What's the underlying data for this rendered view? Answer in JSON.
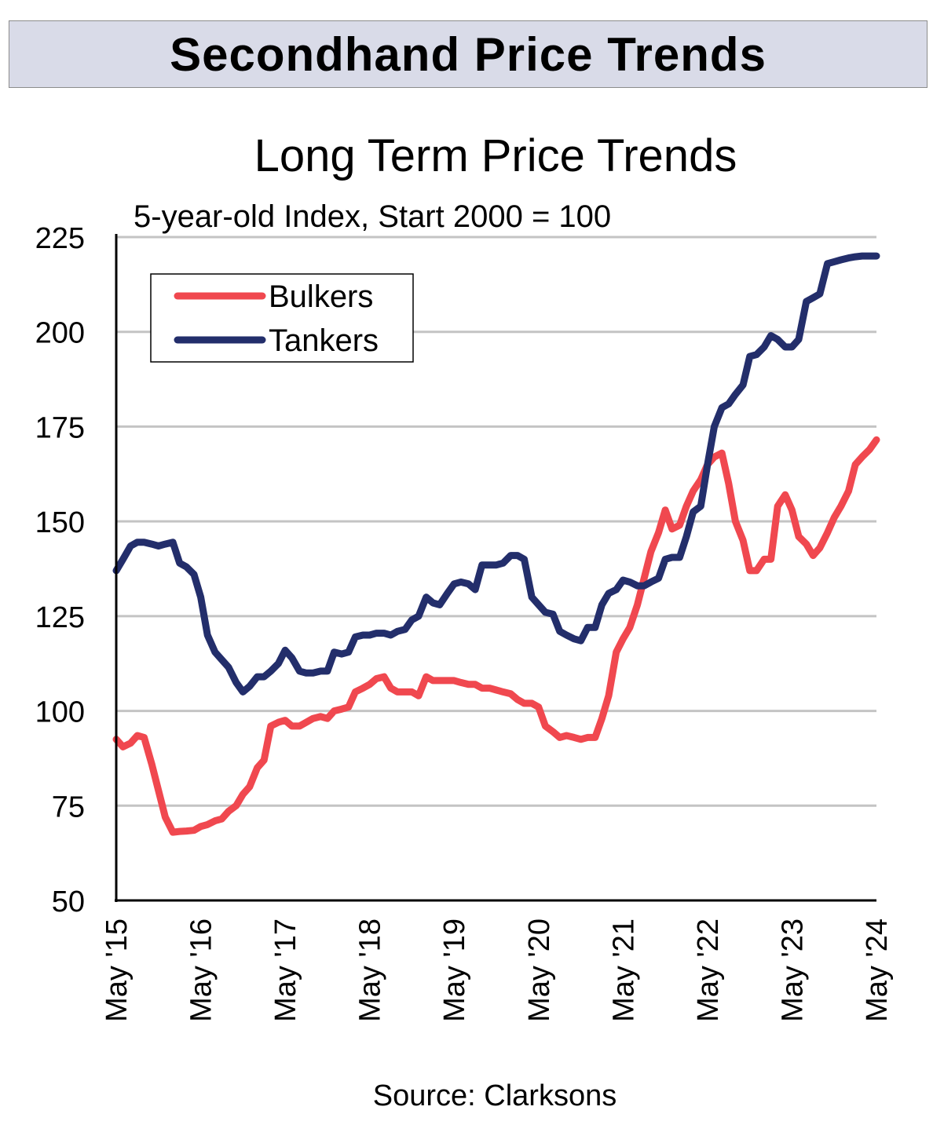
{
  "banner": {
    "title": "Secondhand Price Trends"
  },
  "chart_data": {
    "type": "line",
    "title": "Long Term Price Trends",
    "subtitle": "5-year-old Index, Start 2000 = 100",
    "xlabel": "",
    "ylabel": "",
    "source": "Source: Clarksons",
    "ylim": [
      50,
      225
    ],
    "yticks": [
      50,
      75,
      100,
      125,
      150,
      175,
      200,
      225
    ],
    "grid": "horizontal",
    "legend_position": "top-left",
    "x_start": 2015.0,
    "x_end": 2024.0,
    "xtick_labels": [
      "May '15",
      "May '16",
      "May '17",
      "May '18",
      "May '19",
      "May '20",
      "May '21",
      "May '22",
      "May '23",
      "May '24"
    ],
    "series": [
      {
        "name": "Bulkers",
        "color": "#f0484f",
        "points": [
          [
            2015.0,
            92.5
          ],
          [
            2015.08,
            90.5
          ],
          [
            2015.17,
            91.5
          ],
          [
            2015.25,
            93.5
          ],
          [
            2015.33,
            93.0
          ],
          [
            2015.42,
            86.0
          ],
          [
            2015.5,
            79.0
          ],
          [
            2015.58,
            72.0
          ],
          [
            2015.67,
            68.0
          ],
          [
            2015.75,
            68.2
          ],
          [
            2015.83,
            68.3
          ],
          [
            2015.92,
            68.5
          ],
          [
            2016.0,
            69.5
          ],
          [
            2016.08,
            70.0
          ],
          [
            2016.17,
            71.0
          ],
          [
            2016.25,
            71.5
          ],
          [
            2016.33,
            73.5
          ],
          [
            2016.42,
            75.0
          ],
          [
            2016.5,
            78.0
          ],
          [
            2016.58,
            80.0
          ],
          [
            2016.67,
            85.0
          ],
          [
            2016.75,
            87.0
          ],
          [
            2016.83,
            96.0
          ],
          [
            2016.92,
            97.0
          ],
          [
            2017.0,
            97.5
          ],
          [
            2017.08,
            96.0
          ],
          [
            2017.17,
            96.0
          ],
          [
            2017.25,
            97.0
          ],
          [
            2017.33,
            98.0
          ],
          [
            2017.42,
            98.5
          ],
          [
            2017.5,
            98.0
          ],
          [
            2017.58,
            100.0
          ],
          [
            2017.67,
            100.5
          ],
          [
            2017.75,
            101.0
          ],
          [
            2017.83,
            105.0
          ],
          [
            2017.92,
            106.0
          ],
          [
            2018.0,
            107.0
          ],
          [
            2018.08,
            108.5
          ],
          [
            2018.17,
            109.0
          ],
          [
            2018.25,
            106.0
          ],
          [
            2018.33,
            105.0
          ],
          [
            2018.42,
            105.0
          ],
          [
            2018.5,
            105.0
          ],
          [
            2018.58,
            104.0
          ],
          [
            2018.67,
            109.0
          ],
          [
            2018.75,
            108.0
          ],
          [
            2018.83,
            108.0
          ],
          [
            2018.92,
            108.0
          ],
          [
            2019.0,
            108.0
          ],
          [
            2019.08,
            107.5
          ],
          [
            2019.17,
            107.0
          ],
          [
            2019.25,
            107.0
          ],
          [
            2019.33,
            106.0
          ],
          [
            2019.42,
            106.0
          ],
          [
            2019.5,
            105.5
          ],
          [
            2019.58,
            105.0
          ],
          [
            2019.67,
            104.5
          ],
          [
            2019.75,
            103.0
          ],
          [
            2019.83,
            102.0
          ],
          [
            2019.92,
            102.0
          ],
          [
            2020.0,
            101.0
          ],
          [
            2020.08,
            96.0
          ],
          [
            2020.17,
            94.5
          ],
          [
            2020.25,
            93.0
          ],
          [
            2020.33,
            93.5
          ],
          [
            2020.42,
            93.0
          ],
          [
            2020.5,
            92.5
          ],
          [
            2020.58,
            93.0
          ],
          [
            2020.67,
            93.0
          ],
          [
            2020.75,
            98.0
          ],
          [
            2020.83,
            104.0
          ],
          [
            2020.92,
            115.5
          ],
          [
            2021.0,
            119.0
          ],
          [
            2021.08,
            122.0
          ],
          [
            2021.17,
            128.0
          ],
          [
            2021.25,
            135.0
          ],
          [
            2021.33,
            142.0
          ],
          [
            2021.42,
            147.0
          ],
          [
            2021.5,
            153.0
          ],
          [
            2021.58,
            148.0
          ],
          [
            2021.67,
            149.0
          ],
          [
            2021.75,
            154.0
          ],
          [
            2021.83,
            158.0
          ],
          [
            2021.92,
            161.0
          ],
          [
            2022.0,
            165.0
          ],
          [
            2022.08,
            167.0
          ],
          [
            2022.17,
            168.0
          ],
          [
            2022.25,
            160.0
          ],
          [
            2022.33,
            150.0
          ],
          [
            2022.42,
            145.0
          ],
          [
            2022.5,
            137.0
          ],
          [
            2022.58,
            137.0
          ],
          [
            2022.67,
            140.0
          ],
          [
            2022.75,
            140.0
          ],
          [
            2022.83,
            154.0
          ],
          [
            2022.92,
            157.0
          ],
          [
            2023.0,
            153.0
          ],
          [
            2023.08,
            146.0
          ],
          [
            2023.17,
            144.0
          ],
          [
            2023.25,
            141.0
          ],
          [
            2023.33,
            143.0
          ],
          [
            2023.42,
            147.0
          ],
          [
            2023.5,
            151.0
          ],
          [
            2023.58,
            154.0
          ],
          [
            2023.67,
            158.0
          ],
          [
            2023.75,
            165.0
          ],
          [
            2023.83,
            167.0
          ],
          [
            2023.92,
            169.0
          ],
          [
            2024.0,
            171.5
          ]
        ]
      },
      {
        "name": "Tankers",
        "color": "#232e6b",
        "points": [
          [
            2015.0,
            137.0
          ],
          [
            2015.08,
            140.0
          ],
          [
            2015.17,
            143.5
          ],
          [
            2015.25,
            144.5
          ],
          [
            2015.33,
            144.5
          ],
          [
            2015.42,
            144.0
          ],
          [
            2015.5,
            143.5
          ],
          [
            2015.58,
            144.0
          ],
          [
            2015.67,
            144.5
          ],
          [
            2015.75,
            139.0
          ],
          [
            2015.83,
            138.0
          ],
          [
            2015.92,
            136.0
          ],
          [
            2016.0,
            130.0
          ],
          [
            2016.08,
            120.0
          ],
          [
            2016.17,
            115.5
          ],
          [
            2016.25,
            113.5
          ],
          [
            2016.33,
            111.5
          ],
          [
            2016.42,
            107.5
          ],
          [
            2016.5,
            105.0
          ],
          [
            2016.58,
            106.5
          ],
          [
            2016.67,
            109.0
          ],
          [
            2016.75,
            109.0
          ],
          [
            2016.83,
            110.5
          ],
          [
            2016.92,
            112.5
          ],
          [
            2017.0,
            116.0
          ],
          [
            2017.08,
            114.0
          ],
          [
            2017.17,
            110.5
          ],
          [
            2017.25,
            110.0
          ],
          [
            2017.33,
            110.0
          ],
          [
            2017.42,
            110.5
          ],
          [
            2017.5,
            110.5
          ],
          [
            2017.58,
            115.5
          ],
          [
            2017.67,
            115.0
          ],
          [
            2017.75,
            115.5
          ],
          [
            2017.83,
            119.5
          ],
          [
            2017.92,
            120.0
          ],
          [
            2018.0,
            120.0
          ],
          [
            2018.08,
            120.5
          ],
          [
            2018.17,
            120.5
          ],
          [
            2018.25,
            120.0
          ],
          [
            2018.33,
            121.0
          ],
          [
            2018.42,
            121.5
          ],
          [
            2018.5,
            124.0
          ],
          [
            2018.58,
            125.0
          ],
          [
            2018.67,
            130.0
          ],
          [
            2018.75,
            128.5
          ],
          [
            2018.83,
            128.0
          ],
          [
            2018.92,
            131.0
          ],
          [
            2019.0,
            133.5
          ],
          [
            2019.08,
            134.0
          ],
          [
            2019.17,
            133.5
          ],
          [
            2019.25,
            132.0
          ],
          [
            2019.33,
            138.5
          ],
          [
            2019.42,
            138.5
          ],
          [
            2019.5,
            138.5
          ],
          [
            2019.58,
            139.0
          ],
          [
            2019.67,
            141.0
          ],
          [
            2019.75,
            141.0
          ],
          [
            2019.83,
            140.0
          ],
          [
            2019.92,
            130.0
          ],
          [
            2020.0,
            128.0
          ],
          [
            2020.08,
            126.0
          ],
          [
            2020.17,
            125.5
          ],
          [
            2020.25,
            121.0
          ],
          [
            2020.33,
            120.0
          ],
          [
            2020.42,
            119.0
          ],
          [
            2020.5,
            118.5
          ],
          [
            2020.58,
            122.0
          ],
          [
            2020.67,
            122.0
          ],
          [
            2020.75,
            128.0
          ],
          [
            2020.83,
            131.0
          ],
          [
            2020.92,
            132.0
          ],
          [
            2021.0,
            134.5
          ],
          [
            2021.08,
            134.0
          ],
          [
            2021.17,
            133.0
          ],
          [
            2021.25,
            133.0
          ],
          [
            2021.33,
            134.0
          ],
          [
            2021.42,
            135.0
          ],
          [
            2021.5,
            140.0
          ],
          [
            2021.58,
            140.5
          ],
          [
            2021.67,
            140.5
          ],
          [
            2021.75,
            146.0
          ],
          [
            2021.83,
            152.5
          ],
          [
            2021.92,
            154.0
          ],
          [
            2022.0,
            165.0
          ],
          [
            2022.08,
            175.0
          ],
          [
            2022.17,
            180.0
          ],
          [
            2022.25,
            181.0
          ],
          [
            2022.33,
            183.5
          ],
          [
            2022.42,
            186.0
          ],
          [
            2022.5,
            193.5
          ],
          [
            2022.58,
            194.0
          ],
          [
            2022.67,
            196.0
          ],
          [
            2022.75,
            199.0
          ],
          [
            2022.83,
            198.0
          ],
          [
            2022.92,
            196.0
          ],
          [
            2023.0,
            196.0
          ],
          [
            2023.08,
            198.0
          ],
          [
            2023.17,
            208.0
          ],
          [
            2023.25,
            209.0
          ],
          [
            2023.33,
            210.0
          ],
          [
            2023.42,
            218.0
          ],
          [
            2023.5,
            218.5
          ],
          [
            2023.58,
            219.0
          ],
          [
            2023.67,
            219.5
          ],
          [
            2023.75,
            219.8
          ],
          [
            2023.83,
            220.0
          ],
          [
            2023.92,
            220.0
          ],
          [
            2024.0,
            220.0
          ]
        ]
      }
    ]
  }
}
